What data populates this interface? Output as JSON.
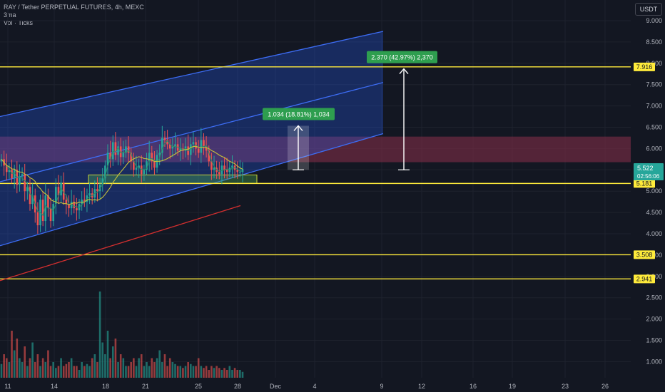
{
  "header": {
    "title": "RAY / Tether PERPETUAL FUTURES, 4h, MEXC",
    "indicator1": "3ma",
    "indicator2": "Vol · Ticks",
    "currency": "USDT"
  },
  "colors": {
    "background": "#131722",
    "up": "#26a69a",
    "down": "#ef5350",
    "level_line": "#ffeb3b",
    "channel": "#2962ff",
    "resistance_zone": "#8b2f4a",
    "ma_fast": "#2f8a66",
    "ma_mid": "#c7c23a",
    "ma_slow": "#d32f2f",
    "measure_label": "#2e9e4f"
  },
  "chart_data": {
    "type": "candlestick",
    "ylim": [
      0.6,
      9.25
    ],
    "x_ticks": [
      "11",
      "14",
      "18",
      "21",
      "25",
      "28",
      "Dec",
      "4",
      "9",
      "12",
      "16",
      "19",
      "23",
      "26"
    ],
    "y_ticks": [
      "9.000",
      "8.500",
      "8.000",
      "7.500",
      "7.000",
      "6.500",
      "6.000",
      "5.500",
      "5.000",
      "4.500",
      "4.000",
      "3.500",
      "3.000",
      "2.500",
      "2.000",
      "1.500",
      "1.000"
    ],
    "horizontal_levels": [
      {
        "value": 7.916,
        "label": "7.916"
      },
      {
        "value": 5.181,
        "label": "5.181"
      },
      {
        "value": 3.508,
        "label": "3.508"
      },
      {
        "value": 2.941,
        "label": "2.941"
      }
    ],
    "current_price": {
      "value": 5.522,
      "label": "5.522",
      "countdown": "02:56:06"
    },
    "measurements": [
      {
        "text": "1.034 (18.81%) 1,034",
        "from": 5.5,
        "to": 6.534
      },
      {
        "text": "2.370 (42.97%) 2,370",
        "from": 5.5,
        "to": 7.87
      }
    ],
    "resistance_zone": [
      5.68,
      6.28
    ],
    "support_box": [
      5.18,
      5.38
    ]
  }
}
